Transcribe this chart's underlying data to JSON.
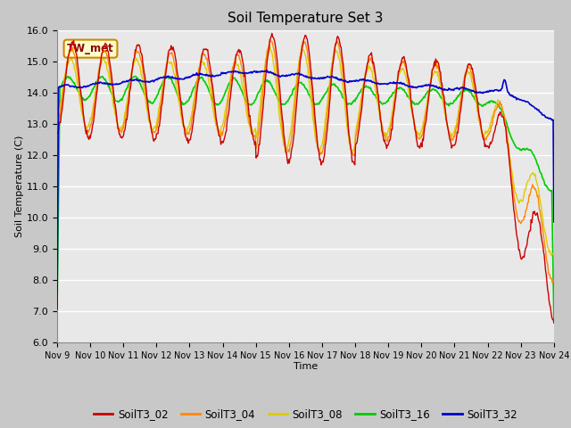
{
  "title": "Soil Temperature Set 3",
  "xlabel": "Time",
  "ylabel": "Soil Temperature (C)",
  "ylim": [
    6.0,
    16.0
  ],
  "yticks": [
    6.0,
    7.0,
    8.0,
    9.0,
    10.0,
    11.0,
    12.0,
    13.0,
    14.0,
    15.0,
    16.0
  ],
  "xtick_labels": [
    "Nov 9",
    "Nov 10",
    "Nov 11",
    "Nov 12",
    "Nov 13",
    "Nov 14",
    "Nov 15",
    "Nov 16",
    "Nov 17",
    "Nov 18",
    "Nov 19",
    "Nov 20",
    "Nov 21",
    "Nov 22",
    "Nov 23",
    "Nov 24"
  ],
  "series_colors": {
    "SoilT3_02": "#cc0000",
    "SoilT3_04": "#ff8800",
    "SoilT3_08": "#ddcc00",
    "SoilT3_16": "#00cc00",
    "SoilT3_32": "#0000cc"
  },
  "series_linewidths": {
    "SoilT3_02": 1.0,
    "SoilT3_04": 1.0,
    "SoilT3_08": 1.0,
    "SoilT3_16": 1.2,
    "SoilT3_32": 1.2
  },
  "legend_label": "TW_met",
  "legend_box_color": "#ffffcc",
  "legend_box_edge": "#cc8800",
  "legend_text_color": "#880000",
  "fig_bg_color": "#c8c8c8",
  "plot_bg_color": "#e8e8e8",
  "grid_color": "#ffffff"
}
